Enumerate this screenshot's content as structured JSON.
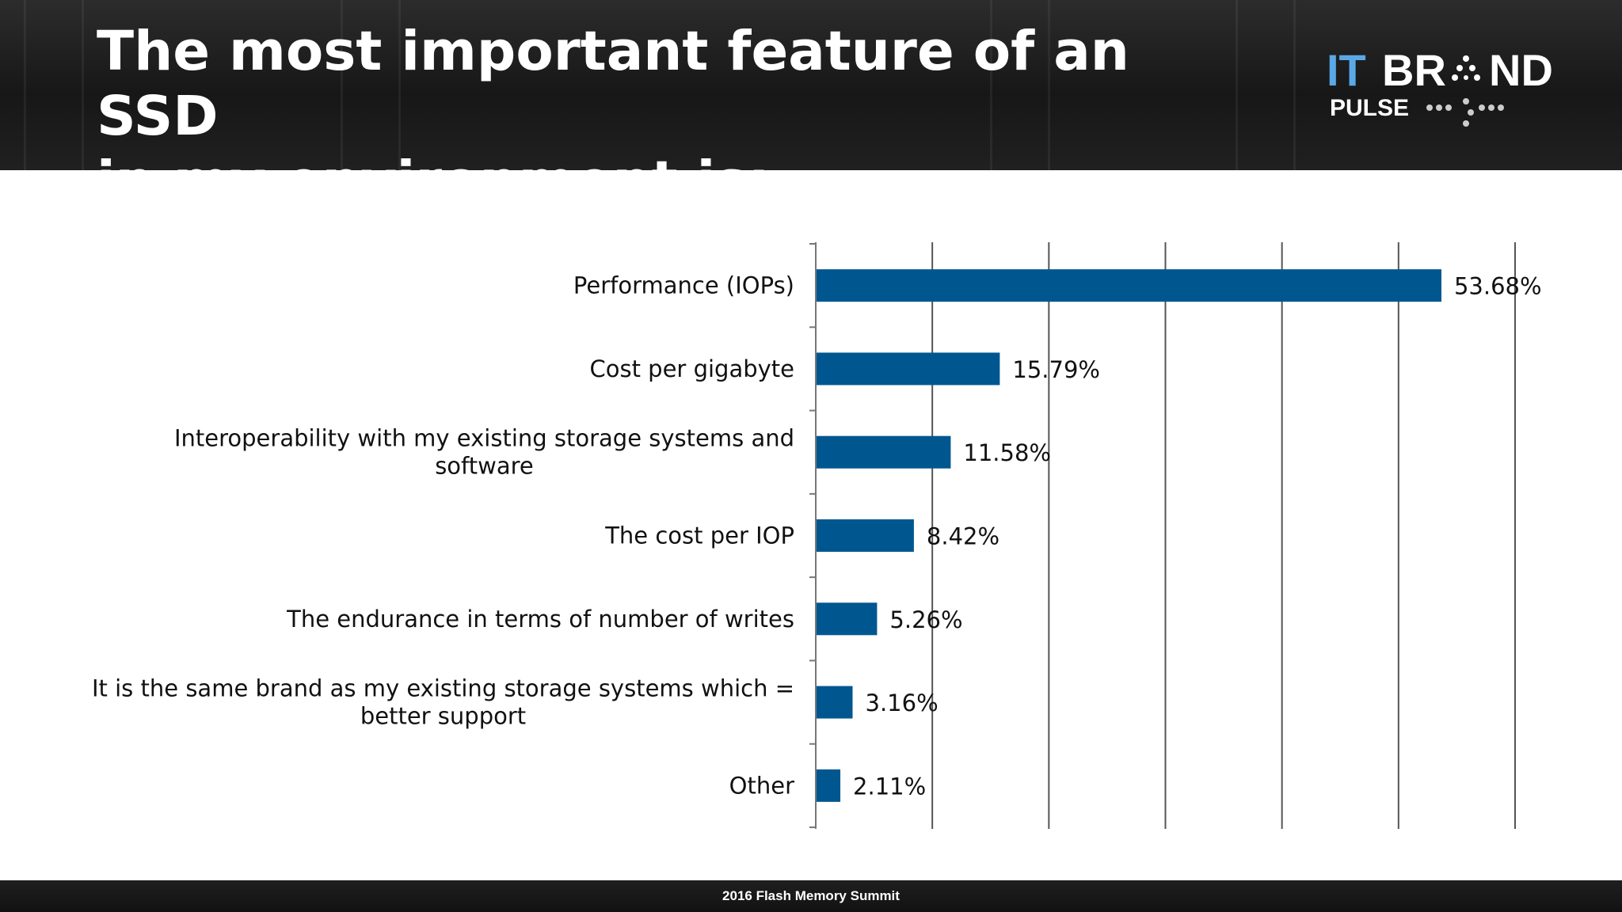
{
  "slide": {
    "title_line1": "The most important feature of an SSD",
    "title_line2": "in my environment is:",
    "footer": "2016 Flash Memory Summit",
    "logo": {
      "word1": "IT",
      "word2": "BR",
      "word3": "ND",
      "word4": "PULSE",
      "icon": "itbrandpulse-logo"
    }
  },
  "colors": {
    "bar": "#00578f",
    "header_bg": "#1e1e1e",
    "logo_blue": "#5aa9e6",
    "grid": "#555555"
  },
  "chart_data": {
    "type": "bar",
    "orientation": "horizontal",
    "categories": [
      "Performance (IOPs)",
      "Cost per gigabyte",
      "Interoperability with my existing storage systems and software",
      "The cost per IOP",
      "The endurance in terms of number of writes",
      "It is the same brand as my existing storage systems which = better support",
      "Other"
    ],
    "category_lines": [
      [
        "Performance (IOPs)"
      ],
      [
        "Cost per gigabyte"
      ],
      [
        "Interoperability with my existing storage systems and",
        "software"
      ],
      [
        "The cost per IOP"
      ],
      [
        "The endurance in terms of number of writes"
      ],
      [
        "It is the same brand as my existing storage systems which =",
        "better support"
      ],
      [
        "Other"
      ]
    ],
    "values": [
      53.68,
      15.79,
      11.58,
      8.42,
      5.26,
      3.16,
      2.11
    ],
    "value_labels": [
      "53.68%",
      "15.79%",
      "11.58%",
      "8.42%",
      "5.26%",
      "3.16%",
      "2.11%"
    ],
    "xlim": [
      0,
      60
    ],
    "x_gridlines": [
      10,
      20,
      30,
      40,
      50,
      60
    ],
    "grid": true,
    "legend": false
  }
}
